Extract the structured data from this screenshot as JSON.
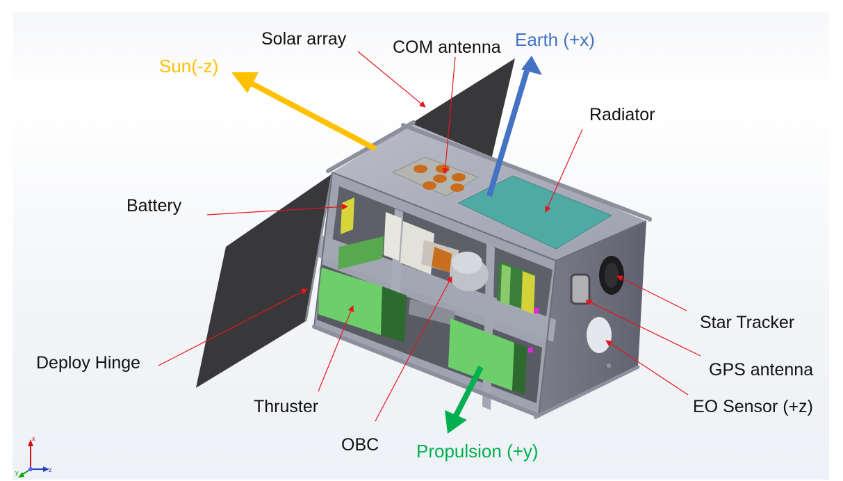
{
  "colors": {
    "leader": "#e8141c",
    "sun_arrow": "#ffc000",
    "earth_arrow": "#4472c4",
    "propulsion_arrow": "#00b050",
    "panel": "#3a3a3c",
    "frame": "#a8aab6",
    "radiator": "#4fa9a5",
    "thruster": "#6ed06a"
  },
  "labels": {
    "solar_array": "Solar array",
    "com_antenna": "COM antenna",
    "radiator": "Radiator",
    "battery": "Battery",
    "star_tracker": "Star Tracker",
    "gps_antenna": "GPS antenna",
    "eo_sensor": "EO Sensor (+z)",
    "deploy_hinge": "Deploy Hinge",
    "thruster": "Thruster",
    "obc": "OBC"
  },
  "axes": {
    "sun": "Sun(-z)",
    "earth": "Earth (+x)",
    "propulsion": "Propulsion (+y)"
  },
  "triad": {
    "x": "x",
    "y": "y",
    "z": "z"
  }
}
